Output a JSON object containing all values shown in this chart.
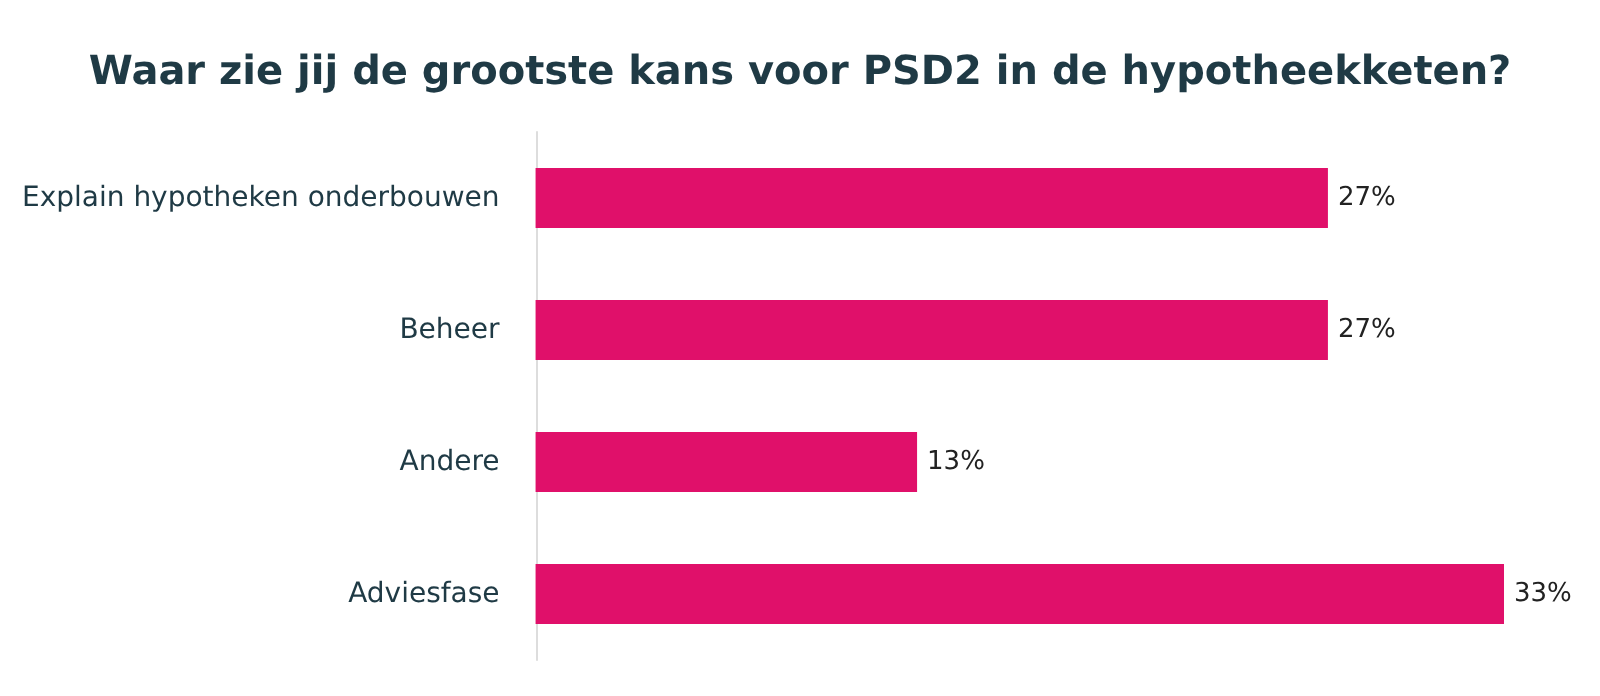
{
  "chart_data": {
    "type": "bar",
    "orientation": "horizontal",
    "title": "Waar zie jij de grootste kans voor PSD2 in de hypotheekketen?",
    "categories": [
      "Explain hypotheken onderbouwen",
      "Beheer",
      "Andere",
      "Adviesfase"
    ],
    "values": [
      27,
      27,
      13,
      33
    ],
    "value_labels": [
      "27%",
      "27%",
      "13%",
      "33%"
    ],
    "color": "#e0106a"
  }
}
